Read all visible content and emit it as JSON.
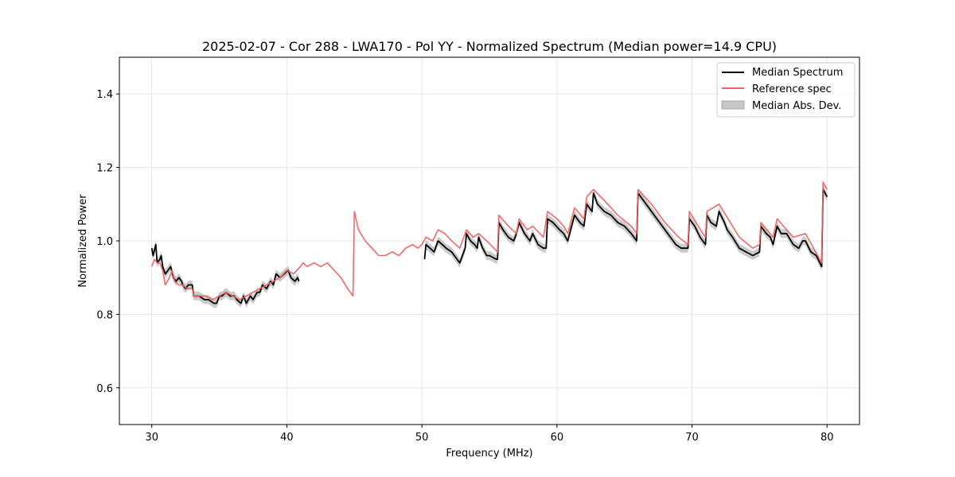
{
  "chart_data": {
    "type": "line",
    "title": "2025-02-07 - Cor 288 - LWA170 - Pol YY - Normalized Spectrum (Median power=14.9 CPU)",
    "xlabel": "Frequency (MHz)",
    "ylabel": "Normalized Power",
    "xlim": [
      27.6,
      82.4
    ],
    "ylim": [
      0.5,
      1.5
    ],
    "xticks": [
      30,
      40,
      50,
      60,
      70,
      80
    ],
    "yticks": [
      0.6,
      0.8,
      1.0,
      1.2,
      1.4
    ],
    "xtick_labels": [
      "30",
      "40",
      "50",
      "60",
      "70",
      "80"
    ],
    "ytick_labels": [
      "0.6",
      "0.8",
      "1.0",
      "1.2",
      "1.4"
    ],
    "grid": true,
    "legend_position": "top-right",
    "series": [
      {
        "name": "Median Spectrum",
        "color": "#000000",
        "segments": [
          [
            [
              30.0,
              0.98
            ],
            [
              30.1,
              0.96
            ],
            [
              30.3,
              0.99
            ],
            [
              30.4,
              0.94
            ],
            [
              30.6,
              0.95
            ],
            [
              30.7,
              0.96
            ],
            [
              30.8,
              0.93
            ],
            [
              31.0,
              0.91
            ],
            [
              31.2,
              0.92
            ],
            [
              31.4,
              0.93
            ],
            [
              31.6,
              0.9
            ],
            [
              31.8,
              0.89
            ],
            [
              32.0,
              0.9
            ],
            [
              32.2,
              0.89
            ],
            [
              32.3,
              0.88
            ],
            [
              32.5,
              0.87
            ],
            [
              32.7,
              0.88
            ],
            [
              33.0,
              0.88
            ],
            [
              33.1,
              0.85
            ],
            [
              33.5,
              0.85
            ],
            [
              33.9,
              0.84
            ],
            [
              34.2,
              0.84
            ],
            [
              34.6,
              0.83
            ],
            [
              34.8,
              0.83
            ],
            [
              35.0,
              0.85
            ],
            [
              35.2,
              0.85
            ],
            [
              35.5,
              0.86
            ],
            [
              35.8,
              0.85
            ],
            [
              36.1,
              0.85
            ],
            [
              36.3,
              0.84
            ],
            [
              36.6,
              0.83
            ],
            [
              36.8,
              0.85
            ],
            [
              37.0,
              0.83
            ],
            [
              37.3,
              0.85
            ],
            [
              37.5,
              0.84
            ],
            [
              37.8,
              0.86
            ],
            [
              38.0,
              0.86
            ],
            [
              38.2,
              0.88
            ],
            [
              38.5,
              0.87
            ],
            [
              38.8,
              0.89
            ],
            [
              39.0,
              0.88
            ],
            [
              39.2,
              0.91
            ],
            [
              39.5,
              0.9
            ],
            [
              39.8,
              0.91
            ],
            [
              40.1,
              0.92
            ],
            [
              40.3,
              0.9
            ],
            [
              40.6,
              0.89
            ],
            [
              40.8,
              0.9
            ],
            [
              40.9,
              0.89
            ]
          ],
          [
            [
              50.2,
              0.95
            ],
            [
              50.3,
              0.99
            ],
            [
              50.6,
              0.98
            ],
            [
              50.9,
              0.97
            ],
            [
              51.1,
              0.99
            ],
            [
              51.2,
              1.0
            ],
            [
              51.5,
              0.99
            ],
            [
              51.8,
              0.98
            ],
            [
              52.2,
              0.97
            ],
            [
              52.6,
              0.95
            ],
            [
              52.8,
              0.94
            ],
            [
              53.0,
              0.96
            ],
            [
              53.2,
              0.98
            ],
            [
              53.3,
              1.02
            ],
            [
              53.6,
              1.0
            ],
            [
              53.9,
              0.99
            ],
            [
              54.1,
              0.98
            ],
            [
              54.2,
              1.01
            ],
            [
              54.5,
              0.98
            ],
            [
              54.8,
              0.96
            ],
            [
              55.0,
              0.96
            ],
            [
              55.5,
              0.95
            ],
            [
              55.6,
              0.95
            ],
            [
              55.7,
              1.05
            ],
            [
              56.0,
              1.03
            ],
            [
              56.4,
              1.01
            ],
            [
              56.8,
              1.0
            ],
            [
              57.0,
              1.02
            ],
            [
              57.2,
              1.05
            ],
            [
              57.6,
              1.02
            ],
            [
              58.0,
              1.0
            ],
            [
              58.2,
              1.02
            ],
            [
              58.6,
              0.99
            ],
            [
              59.0,
              0.98
            ],
            [
              59.2,
              0.98
            ],
            [
              59.3,
              1.06
            ],
            [
              59.7,
              1.05
            ],
            [
              60.2,
              1.03
            ],
            [
              60.5,
              1.02
            ],
            [
              60.8,
              1.0
            ],
            [
              61.3,
              1.07
            ],
            [
              61.7,
              1.05
            ],
            [
              62.0,
              1.04
            ],
            [
              62.2,
              1.1
            ],
            [
              62.6,
              1.08
            ],
            [
              62.7,
              1.13
            ],
            [
              63.0,
              1.1
            ],
            [
              63.5,
              1.08
            ],
            [
              64.0,
              1.07
            ],
            [
              64.5,
              1.05
            ],
            [
              65.0,
              1.04
            ],
            [
              65.5,
              1.02
            ],
            [
              65.9,
              1.0
            ],
            [
              66.0,
              1.13
            ],
            [
              66.4,
              1.11
            ],
            [
              66.8,
              1.09
            ],
            [
              67.2,
              1.07
            ],
            [
              67.6,
              1.05
            ],
            [
              68.0,
              1.03
            ],
            [
              68.4,
              1.01
            ],
            [
              68.8,
              0.99
            ],
            [
              69.2,
              0.98
            ],
            [
              69.5,
              0.98
            ],
            [
              69.7,
              0.98
            ],
            [
              69.8,
              1.06
            ],
            [
              70.2,
              1.04
            ],
            [
              70.6,
              1.01
            ],
            [
              70.8,
              1.0
            ],
            [
              71.0,
              0.99
            ],
            [
              71.1,
              1.07
            ],
            [
              71.4,
              1.05
            ],
            [
              71.8,
              1.04
            ],
            [
              72.0,
              1.08
            ],
            [
              72.4,
              1.05
            ],
            [
              72.6,
              1.03
            ],
            [
              73.0,
              1.01
            ],
            [
              73.5,
              0.98
            ],
            [
              74.0,
              0.97
            ],
            [
              74.5,
              0.96
            ],
            [
              75.0,
              0.97
            ],
            [
              75.1,
              1.04
            ],
            [
              75.5,
              1.02
            ],
            [
              75.8,
              1.01
            ],
            [
              76.0,
              0.99
            ],
            [
              76.3,
              1.04
            ],
            [
              76.6,
              1.02
            ],
            [
              77.0,
              1.02
            ],
            [
              77.5,
              0.99
            ],
            [
              77.9,
              0.98
            ],
            [
              78.2,
              1.0
            ],
            [
              78.4,
              1.0
            ],
            [
              78.8,
              0.97
            ],
            [
              79.2,
              0.96
            ],
            [
              79.6,
              0.93
            ],
            [
              79.7,
              1.14
            ],
            [
              80.0,
              1.12
            ]
          ]
        ]
      },
      {
        "name": "Reference spec",
        "color": "#f26060",
        "segments": [
          [
            [
              30.0,
              0.93
            ],
            [
              30.2,
              0.95
            ],
            [
              30.4,
              0.94
            ],
            [
              30.6,
              0.94
            ],
            [
              30.8,
              0.92
            ],
            [
              31.0,
              0.88
            ],
            [
              31.3,
              0.9
            ],
            [
              31.5,
              0.92
            ],
            [
              31.7,
              0.89
            ],
            [
              32.0,
              0.88
            ],
            [
              32.3,
              0.88
            ],
            [
              32.6,
              0.87
            ],
            [
              33.0,
              0.87
            ],
            [
              33.1,
              0.85
            ],
            [
              33.5,
              0.85
            ],
            [
              34.0,
              0.85
            ],
            [
              34.5,
              0.84
            ],
            [
              35.0,
              0.85
            ],
            [
              35.5,
              0.86
            ],
            [
              36.0,
              0.85
            ],
            [
              36.5,
              0.84
            ],
            [
              37.0,
              0.85
            ],
            [
              37.5,
              0.86
            ],
            [
              38.0,
              0.87
            ],
            [
              38.5,
              0.88
            ],
            [
              39.0,
              0.89
            ],
            [
              39.5,
              0.9
            ],
            [
              40.0,
              0.92
            ],
            [
              40.5,
              0.91
            ],
            [
              41.0,
              0.93
            ],
            [
              41.2,
              0.94
            ],
            [
              41.5,
              0.93
            ],
            [
              42.0,
              0.94
            ],
            [
              42.5,
              0.93
            ],
            [
              43.0,
              0.94
            ],
            [
              43.5,
              0.92
            ],
            [
              44.0,
              0.9
            ],
            [
              44.5,
              0.87
            ],
            [
              44.9,
              0.85
            ],
            [
              45.0,
              1.08
            ],
            [
              45.3,
              1.03
            ],
            [
              45.8,
              1.0
            ],
            [
              46.3,
              0.98
            ],
            [
              46.8,
              0.96
            ],
            [
              47.3,
              0.96
            ],
            [
              47.8,
              0.97
            ],
            [
              48.3,
              0.96
            ],
            [
              48.8,
              0.98
            ],
            [
              49.3,
              0.99
            ],
            [
              49.7,
              0.98
            ],
            [
              50.0,
              0.99
            ],
            [
              50.3,
              1.01
            ],
            [
              50.8,
              1.0
            ],
            [
              51.2,
              1.03
            ],
            [
              51.7,
              1.02
            ],
            [
              52.2,
              1.0
            ],
            [
              52.8,
              0.98
            ],
            [
              53.3,
              1.03
            ],
            [
              53.8,
              1.01
            ],
            [
              54.2,
              1.02
            ],
            [
              54.8,
              1.0
            ],
            [
              55.6,
              0.97
            ],
            [
              55.7,
              1.07
            ],
            [
              56.4,
              1.04
            ],
            [
              57.0,
              1.02
            ],
            [
              57.2,
              1.06
            ],
            [
              57.8,
              1.03
            ],
            [
              58.2,
              1.04
            ],
            [
              59.0,
              1.01
            ],
            [
              59.3,
              1.08
            ],
            [
              60.0,
              1.06
            ],
            [
              60.5,
              1.04
            ],
            [
              60.8,
              1.02
            ],
            [
              61.3,
              1.09
            ],
            [
              62.0,
              1.06
            ],
            [
              62.2,
              1.12
            ],
            [
              62.7,
              1.14
            ],
            [
              63.5,
              1.11
            ],
            [
              64.5,
              1.07
            ],
            [
              65.5,
              1.04
            ],
            [
              65.9,
              1.02
            ],
            [
              66.0,
              1.14
            ],
            [
              67.0,
              1.1
            ],
            [
              68.0,
              1.05
            ],
            [
              69.0,
              1.01
            ],
            [
              69.7,
              0.99
            ],
            [
              69.8,
              1.08
            ],
            [
              70.8,
              1.02
            ],
            [
              71.0,
              1.01
            ],
            [
              71.1,
              1.08
            ],
            [
              72.0,
              1.1
            ],
            [
              72.5,
              1.07
            ],
            [
              73.5,
              1.01
            ],
            [
              74.5,
              0.98
            ],
            [
              75.0,
              0.99
            ],
            [
              75.1,
              1.05
            ],
            [
              76.0,
              1.01
            ],
            [
              76.3,
              1.06
            ],
            [
              77.5,
              1.01
            ],
            [
              78.4,
              1.02
            ],
            [
              79.6,
              0.94
            ],
            [
              79.7,
              1.16
            ],
            [
              80.0,
              1.14
            ]
          ]
        ]
      },
      {
        "name": "Median Abs. Dev.",
        "color": "#bfbfbf",
        "band_halfwidth": 0.012
      }
    ]
  }
}
